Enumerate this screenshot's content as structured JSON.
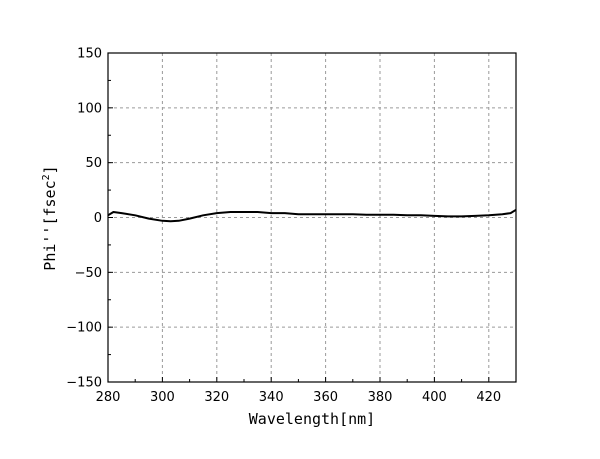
{
  "chart_data": {
    "type": "line",
    "xlabel": "Wavelength[nm]",
    "ylabel": "Phi''[fsec",
    "ylabel_superscript": "2",
    "ylabel_close": "]",
    "xlim": [
      280,
      430
    ],
    "ylim": [
      -150,
      150
    ],
    "xticks": [
      280,
      300,
      320,
      340,
      360,
      380,
      400,
      420
    ],
    "yticks": [
      -150,
      -100,
      -50,
      0,
      50,
      100,
      150
    ],
    "grid": true,
    "series": [
      {
        "color": "#000000",
        "x": [
          280,
          282,
          285,
          290,
          295,
          300,
          303,
          306,
          310,
          315,
          320,
          325,
          330,
          335,
          340,
          345,
          350,
          355,
          360,
          365,
          370,
          375,
          380,
          385,
          390,
          395,
          400,
          405,
          410,
          415,
          420,
          425,
          428,
          430
        ],
        "y": [
          2,
          5,
          4,
          2,
          -1,
          -3,
          -3.5,
          -3,
          -1,
          2,
          4,
          5,
          5,
          5,
          4,
          4,
          3,
          3,
          3,
          3,
          3,
          2.5,
          2.5,
          2.5,
          2,
          2,
          1.5,
          1,
          1,
          1.5,
          2,
          3,
          4,
          7
        ]
      }
    ]
  }
}
